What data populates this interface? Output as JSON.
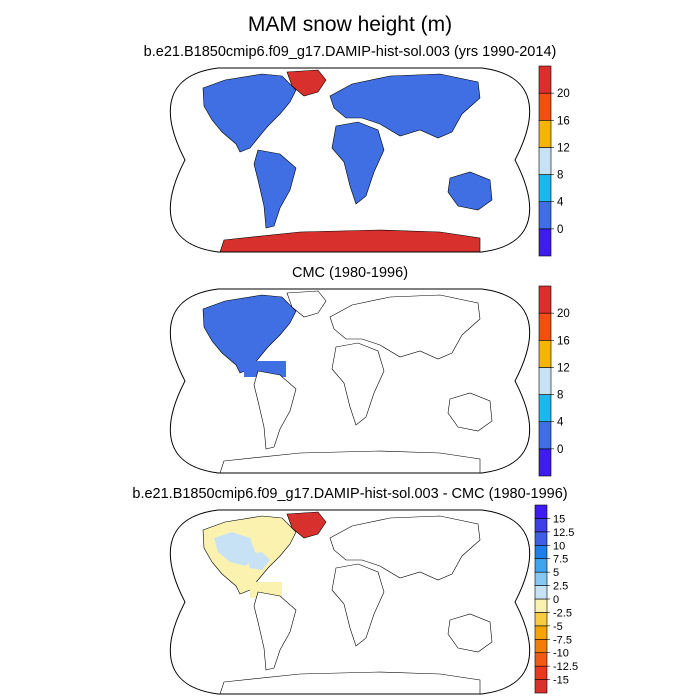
{
  "title": "MAM snow height (m)",
  "panels": [
    {
      "subtitle": "b.e21.B1850cmip6.f09_g17.DAMIP-hist-sol.003 (yrs 1990-2014)",
      "colorbar": {
        "labels": [
          "0",
          "4",
          "8",
          "12",
          "16",
          "20"
        ],
        "colors": [
          "#3e1cf0",
          "#3f6fe3",
          "#1eb6ef",
          "#c8e2f5",
          "#f7b400",
          "#f24f12",
          "#d8302d"
        ]
      }
    },
    {
      "subtitle": "CMC (1980-1996)",
      "colorbar": {
        "labels": [
          "0",
          "4",
          "8",
          "12",
          "16",
          "20"
        ],
        "colors": [
          "#3e1cf0",
          "#3f6fe3",
          "#1eb6ef",
          "#c8e2f5",
          "#f7b400",
          "#f24f12",
          "#d8302d"
        ]
      }
    },
    {
      "subtitle": "b.e21.B1850cmip6.f09_g17.DAMIP-hist-sol.003 - CMC (1980-1996)",
      "colorbar": {
        "labels": [
          "15",
          "12.5",
          "10",
          "7.5",
          "5",
          "2.5",
          "0",
          "-2.5",
          "-5",
          "-7.5",
          "-10",
          "-12.5",
          "-15"
        ],
        "colors": [
          "#d8302d",
          "#e8381f",
          "#f05a12",
          "#f47d0a",
          "#f7a400",
          "#f8cc40",
          "#fbf2b0",
          "#c8e2f5",
          "#86c8f1",
          "#3fa5ee",
          "#1f7ee9",
          "#3f5ee3",
          "#3f3fe8",
          "#3e1cf0"
        ]
      }
    }
  ],
  "chart_data": [
    {
      "type": "heatmap",
      "title": "MAM snow height (m)",
      "subtitle": "b.e21.B1850cmip6.f09_g17.DAMIP-hist-sol.003 (yrs 1990-2014)",
      "projection": "robinson world map",
      "colorbar_levels": [
        0,
        4,
        8,
        12,
        16,
        20
      ],
      "regions": [
        {
          "region": "Greenland",
          "bin": ">20"
        },
        {
          "region": "Antarctica",
          "bin": ">20"
        },
        {
          "region": "North America",
          "bin": "0-4"
        },
        {
          "region": "South America",
          "bin": "0-4"
        },
        {
          "region": "Eurasia",
          "bin": "0-4"
        },
        {
          "region": "Africa",
          "bin": "0-4"
        },
        {
          "region": "Australia",
          "bin": "0-4"
        }
      ]
    },
    {
      "type": "heatmap",
      "subtitle": "CMC (1980-1996)",
      "projection": "robinson world map",
      "colorbar_levels": [
        0,
        4,
        8,
        12,
        16,
        20
      ],
      "regions": [
        {
          "region": "North America (north of ~15N)",
          "bin": "0-4"
        }
      ]
    },
    {
      "type": "heatmap",
      "subtitle": "b.e21.B1850cmip6.f09_g17.DAMIP-hist-sol.003 - CMC (1980-1996)",
      "projection": "robinson world map",
      "colorbar_levels": [
        -15,
        -12.5,
        -10,
        -7.5,
        -5,
        -2.5,
        0,
        2.5,
        5,
        7.5,
        10,
        12.5,
        15
      ],
      "regions": [
        {
          "region": "Greenland",
          "bin": ">15"
        },
        {
          "region": "North America",
          "bin": "mostly 0 to 2.5, with -2.5 to 0 patches"
        },
        {
          "region": "Central America",
          "bin": "0 to 2.5"
        }
      ]
    }
  ]
}
